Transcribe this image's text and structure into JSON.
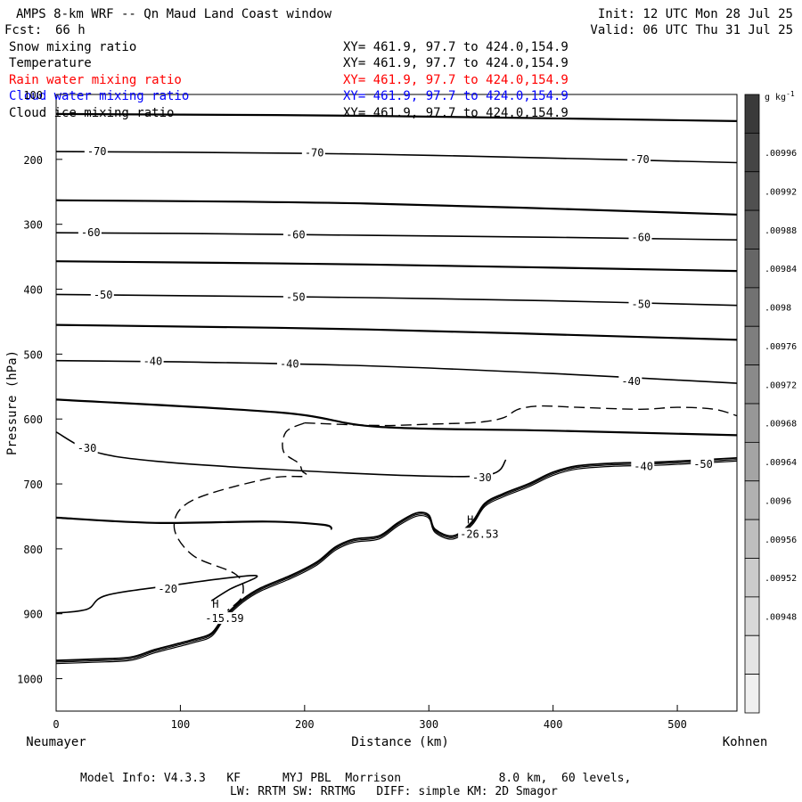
{
  "header": {
    "title": "AMPS 8-km WRF -- Qn Maud Land Coast window",
    "init": "Init: 12 UTC Mon 28 Jul 25",
    "fcst_label": "Fcst:",
    "fcst_value": "66 h",
    "valid": "Valid: 06 UTC Thu 31 Jul 25"
  },
  "fields": [
    {
      "name": "Snow mixing ratio",
      "xy": "XY= 461.9, 97.7 to 424.0,154.9",
      "color": "#000000"
    },
    {
      "name": "Temperature",
      "xy": "XY= 461.9, 97.7 to 424.0,154.9",
      "color": "#000000"
    },
    {
      "name": "Rain water mixing ratio",
      "xy": "XY= 461.9, 97.7 to 424.0,154.9",
      "color": "#ff0000"
    },
    {
      "name": "Cloud water mixing ratio",
      "xy": "XY= 461.9, 97.7 to 424.0,154.9",
      "color": "#0000ff"
    },
    {
      "name": "Cloud ice mixing ratio",
      "xy": "XY= 461.9, 97.7 to 424.0,154.9",
      "color": "#000000"
    }
  ],
  "footer": {
    "line1": "Model Info: V4.3.3   KF      MYJ PBL  Morrison              8.0 km,  60 levels,",
    "line2": "LW: RRTM SW: RRTMG   DIFF: simple KM: 2D Smagor"
  },
  "chart_data": {
    "type": "contour",
    "xlabel": "Distance (km)",
    "ylabel": "Pressure (hPa)",
    "xlim": [
      0,
      548
    ],
    "ylim": [
      1050,
      100
    ],
    "y_log": false,
    "x_ticks": [
      0,
      100,
      200,
      300,
      400,
      500
    ],
    "y_ticks": [
      100,
      200,
      300,
      400,
      500,
      600,
      700,
      800,
      900,
      1000
    ],
    "x_end_labels": {
      "left": "Neumayer",
      "right": "Kohnen"
    },
    "grid": false,
    "colorbar": {
      "unit": "g kg",
      "unit_exp": "-1",
      "labels": [
        ".00996",
        ".00992",
        ".00988",
        ".00984",
        ".0098",
        ".00976",
        ".00972",
        ".00968",
        ".00964",
        ".0096",
        ".00956",
        ".00952",
        ".00948"
      ],
      "colors": [
        "#3a3a3a",
        "#454545",
        "#505050",
        "#5b5b5b",
        "#666666",
        "#727272",
        "#7e7e7e",
        "#8a8a8a",
        "#979797",
        "#a4a4a4",
        "#b1b1b1",
        "#bebebe",
        "#cbcbcb",
        "#d8d8d8",
        "#e4e4e4",
        "#f0f0f0"
      ]
    },
    "isotherms": [
      {
        "label": "-70",
        "points": [
          [
            0,
            188
          ],
          [
            100,
            189
          ],
          [
            250,
            192
          ],
          [
            400,
            198
          ],
          [
            548,
            205
          ]
        ]
      },
      {
        "label": "-60",
        "points": [
          [
            0,
            313
          ],
          [
            100,
            314
          ],
          [
            250,
            317
          ],
          [
            400,
            320
          ],
          [
            548,
            324
          ]
        ]
      },
      {
        "label": "-50",
        "points": [
          [
            0,
            408
          ],
          [
            100,
            410
          ],
          [
            250,
            413
          ],
          [
            400,
            418
          ],
          [
            548,
            425
          ]
        ]
      },
      {
        "label": "-40",
        "points": [
          [
            0,
            510
          ],
          [
            100,
            512
          ],
          [
            250,
            518
          ],
          [
            400,
            530
          ],
          [
            548,
            545
          ]
        ]
      },
      {
        "label": "-30",
        "points": [
          [
            0,
            620
          ],
          [
            30,
            650
          ],
          [
            80,
            665
          ],
          [
            180,
            678
          ],
          [
            300,
            688
          ],
          [
            350,
            685
          ],
          [
            362,
            663
          ]
        ]
      },
      {
        "label": "-20",
        "points": [
          [
            0,
            899
          ],
          [
            25,
            893
          ],
          [
            40,
            872
          ],
          [
            90,
            857
          ],
          [
            160,
            841
          ],
          [
            140,
            862
          ],
          [
            125,
            880
          ]
        ]
      }
    ],
    "thick_lines": [
      {
        "points": [
          [
            0,
            130
          ],
          [
            250,
            133
          ],
          [
            548,
            141
          ]
        ]
      },
      {
        "points": [
          [
            0,
            263
          ],
          [
            250,
            268
          ],
          [
            548,
            285
          ]
        ]
      },
      {
        "points": [
          [
            0,
            357
          ],
          [
            250,
            362
          ],
          [
            548,
            372
          ]
        ]
      },
      {
        "points": [
          [
            0,
            455
          ],
          [
            250,
            462
          ],
          [
            548,
            478
          ]
        ]
      },
      {
        "points": [
          [
            0,
            570
          ],
          [
            180,
            590
          ],
          [
            260,
            612
          ],
          [
            400,
            618
          ],
          [
            548,
            625
          ]
        ]
      },
      {
        "points": [
          [
            0,
            752
          ],
          [
            80,
            760
          ],
          [
            170,
            758
          ],
          [
            215,
            763
          ],
          [
            222,
            770
          ]
        ]
      }
    ],
    "dashed_contours": [
      {
        "points": [
          [
            200,
            606
          ],
          [
            260,
            610
          ],
          [
            300,
            608
          ],
          [
            340,
            605
          ],
          [
            360,
            598
          ],
          [
            372,
            585
          ],
          [
            390,
            580
          ],
          [
            420,
            582
          ],
          [
            470,
            585
          ],
          [
            500,
            582
          ],
          [
            530,
            585
          ],
          [
            548,
            595
          ]
        ]
      },
      {
        "points": [
          [
            200,
            606
          ],
          [
            185,
            620
          ],
          [
            183,
            650
          ],
          [
            195,
            668
          ],
          [
            198,
            680
          ],
          [
            200,
            688
          ],
          [
            170,
            692
          ],
          [
            110,
            725
          ],
          [
            95,
            765
          ],
          [
            110,
            810
          ],
          [
            145,
            840
          ],
          [
            150,
            872
          ],
          [
            138,
            895
          ]
        ]
      }
    ],
    "terrain": [
      [
        0,
        972
      ],
      [
        30,
        970
      ],
      [
        60,
        967
      ],
      [
        80,
        955
      ],
      [
        110,
        940
      ],
      [
        125,
        930
      ],
      [
        135,
        905
      ],
      [
        150,
        878
      ],
      [
        165,
        860
      ],
      [
        190,
        840
      ],
      [
        210,
        820
      ],
      [
        225,
        797
      ],
      [
        240,
        785
      ],
      [
        260,
        780
      ],
      [
        275,
        760
      ],
      [
        290,
        745
      ],
      [
        300,
        748
      ],
      [
        305,
        770
      ],
      [
        320,
        780
      ],
      [
        335,
        758
      ],
      [
        345,
        730
      ],
      [
        360,
        715
      ],
      [
        380,
        700
      ],
      [
        400,
        682
      ],
      [
        420,
        672
      ],
      [
        450,
        668
      ],
      [
        490,
        666
      ],
      [
        548,
        660
      ]
    ],
    "highs": [
      {
        "label": "H",
        "value": "-15.59",
        "x": 120,
        "p": 895
      },
      {
        "label": "H",
        "value": "-26.53",
        "x": 325,
        "p": 765
      }
    ],
    "contour_labels": [
      {
        "text": "-70",
        "x": 25,
        "p": 188
      },
      {
        "text": "-70",
        "x": 200,
        "p": 190
      },
      {
        "text": "-70",
        "x": 462,
        "p": 200
      },
      {
        "text": "-60",
        "x": 20,
        "p": 313
      },
      {
        "text": "-60",
        "x": 185,
        "p": 316
      },
      {
        "text": "-60",
        "x": 463,
        "p": 320
      },
      {
        "text": "-50",
        "x": 30,
        "p": 409
      },
      {
        "text": "-50",
        "x": 185,
        "p": 412
      },
      {
        "text": "-50",
        "x": 463,
        "p": 423
      },
      {
        "text": "-40",
        "x": 70,
        "p": 511
      },
      {
        "text": "-40",
        "x": 180,
        "p": 515
      },
      {
        "text": "-40",
        "x": 455,
        "p": 542
      },
      {
        "text": "-40",
        "x": 465,
        "p": 673
      },
      {
        "text": "-30",
        "x": 17,
        "p": 645
      },
      {
        "text": "-30",
        "x": 335,
        "p": 690
      },
      {
        "text": "-50",
        "x": 513,
        "p": 670
      },
      {
        "text": "-20",
        "x": 82,
        "p": 862
      }
    ]
  }
}
